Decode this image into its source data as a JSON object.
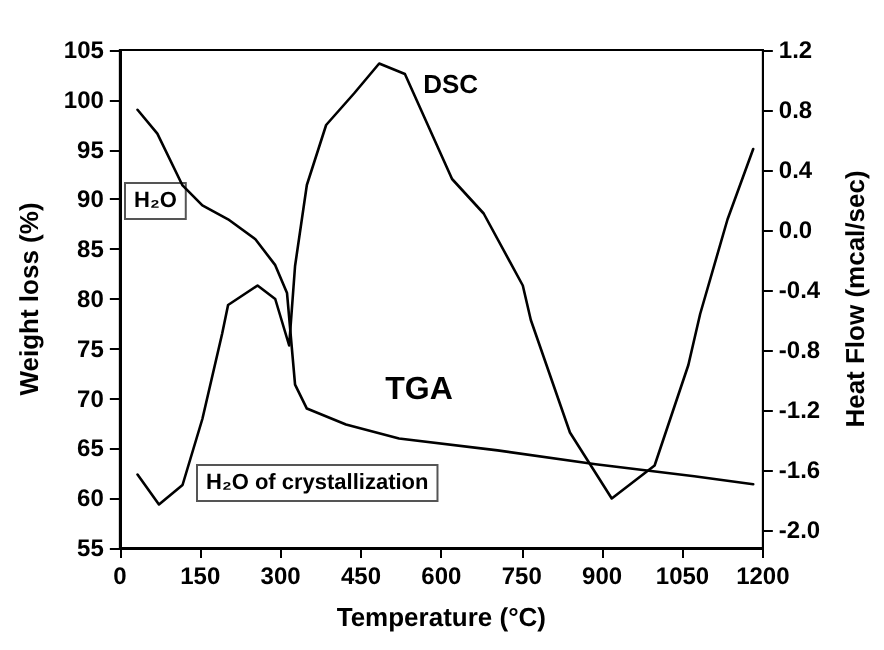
{
  "chart_data": {
    "type": "line",
    "xlabel": "Temperature (°C)",
    "ylabel": "Weight loss (%)",
    "y2label": "Heat Flow (mcal/sec)",
    "series": [
      {
        "name": "TGA",
        "color": "#000000",
        "x": [
          33,
          70,
          117,
          154,
          202,
          253,
          290,
          312,
          327,
          349,
          422,
          521,
          705,
          888,
          1072,
          1182
        ],
        "values": [
          99,
          96.6,
          91.4,
          89.4,
          88,
          86,
          83.4,
          80.6,
          71.4,
          69,
          67.4,
          66,
          64.8,
          63.4,
          62.2,
          61.4
        ]
      },
      {
        "name": "DSC",
        "color": "#000000",
        "axis": "y2",
        "x": [
          33,
          73,
          117,
          154,
          191,
          202,
          257,
          290,
          316,
          327,
          349,
          385,
          437,
          484,
          532,
          620,
          679,
          752,
          767,
          840,
          918,
          998,
          1061,
          1083,
          1134,
          1182
        ],
        "values": [
          -1.63,
          -1.83,
          -1.7,
          -1.26,
          -0.69,
          -0.5,
          -0.37,
          -0.46,
          -0.77,
          -0.24,
          0.3,
          0.7,
          0.91,
          1.11,
          1.04,
          0.34,
          0.11,
          -0.37,
          -0.6,
          -1.35,
          -1.79,
          -1.57,
          -0.9,
          -0.56,
          0.07,
          0.54
        ]
      }
    ],
    "annotations": [
      "H₂O",
      "H₂O of crystallization"
    ],
    "xlim": [
      0,
      1200
    ],
    "xticks": [
      0,
      150,
      300,
      450,
      600,
      750,
      900,
      1050,
      1200
    ],
    "ylim": [
      55,
      105
    ],
    "yticks": [
      55,
      60,
      65,
      70,
      75,
      80,
      85,
      90,
      95,
      100,
      105
    ],
    "y2lim": [
      -2.12,
      1.2
    ],
    "y2ticks": [
      {
        "value": -2,
        "label": "-2.0"
      },
      {
        "value": -1.6,
        "label": "-1.6"
      },
      {
        "value": -1.2,
        "label": "-1.2"
      },
      {
        "value": -0.8,
        "label": "-0.8"
      },
      {
        "value": -0.4,
        "label": "-0.4"
      },
      {
        "value": 0,
        "label": "0.0"
      },
      {
        "value": 0.4,
        "label": "0.4"
      },
      {
        "value": 0.8,
        "label": "0.8"
      },
      {
        "value": 1.2,
        "label": "1.2"
      }
    ],
    "grid": false,
    "legend": false,
    "marker": "none",
    "line_style": "solid"
  }
}
